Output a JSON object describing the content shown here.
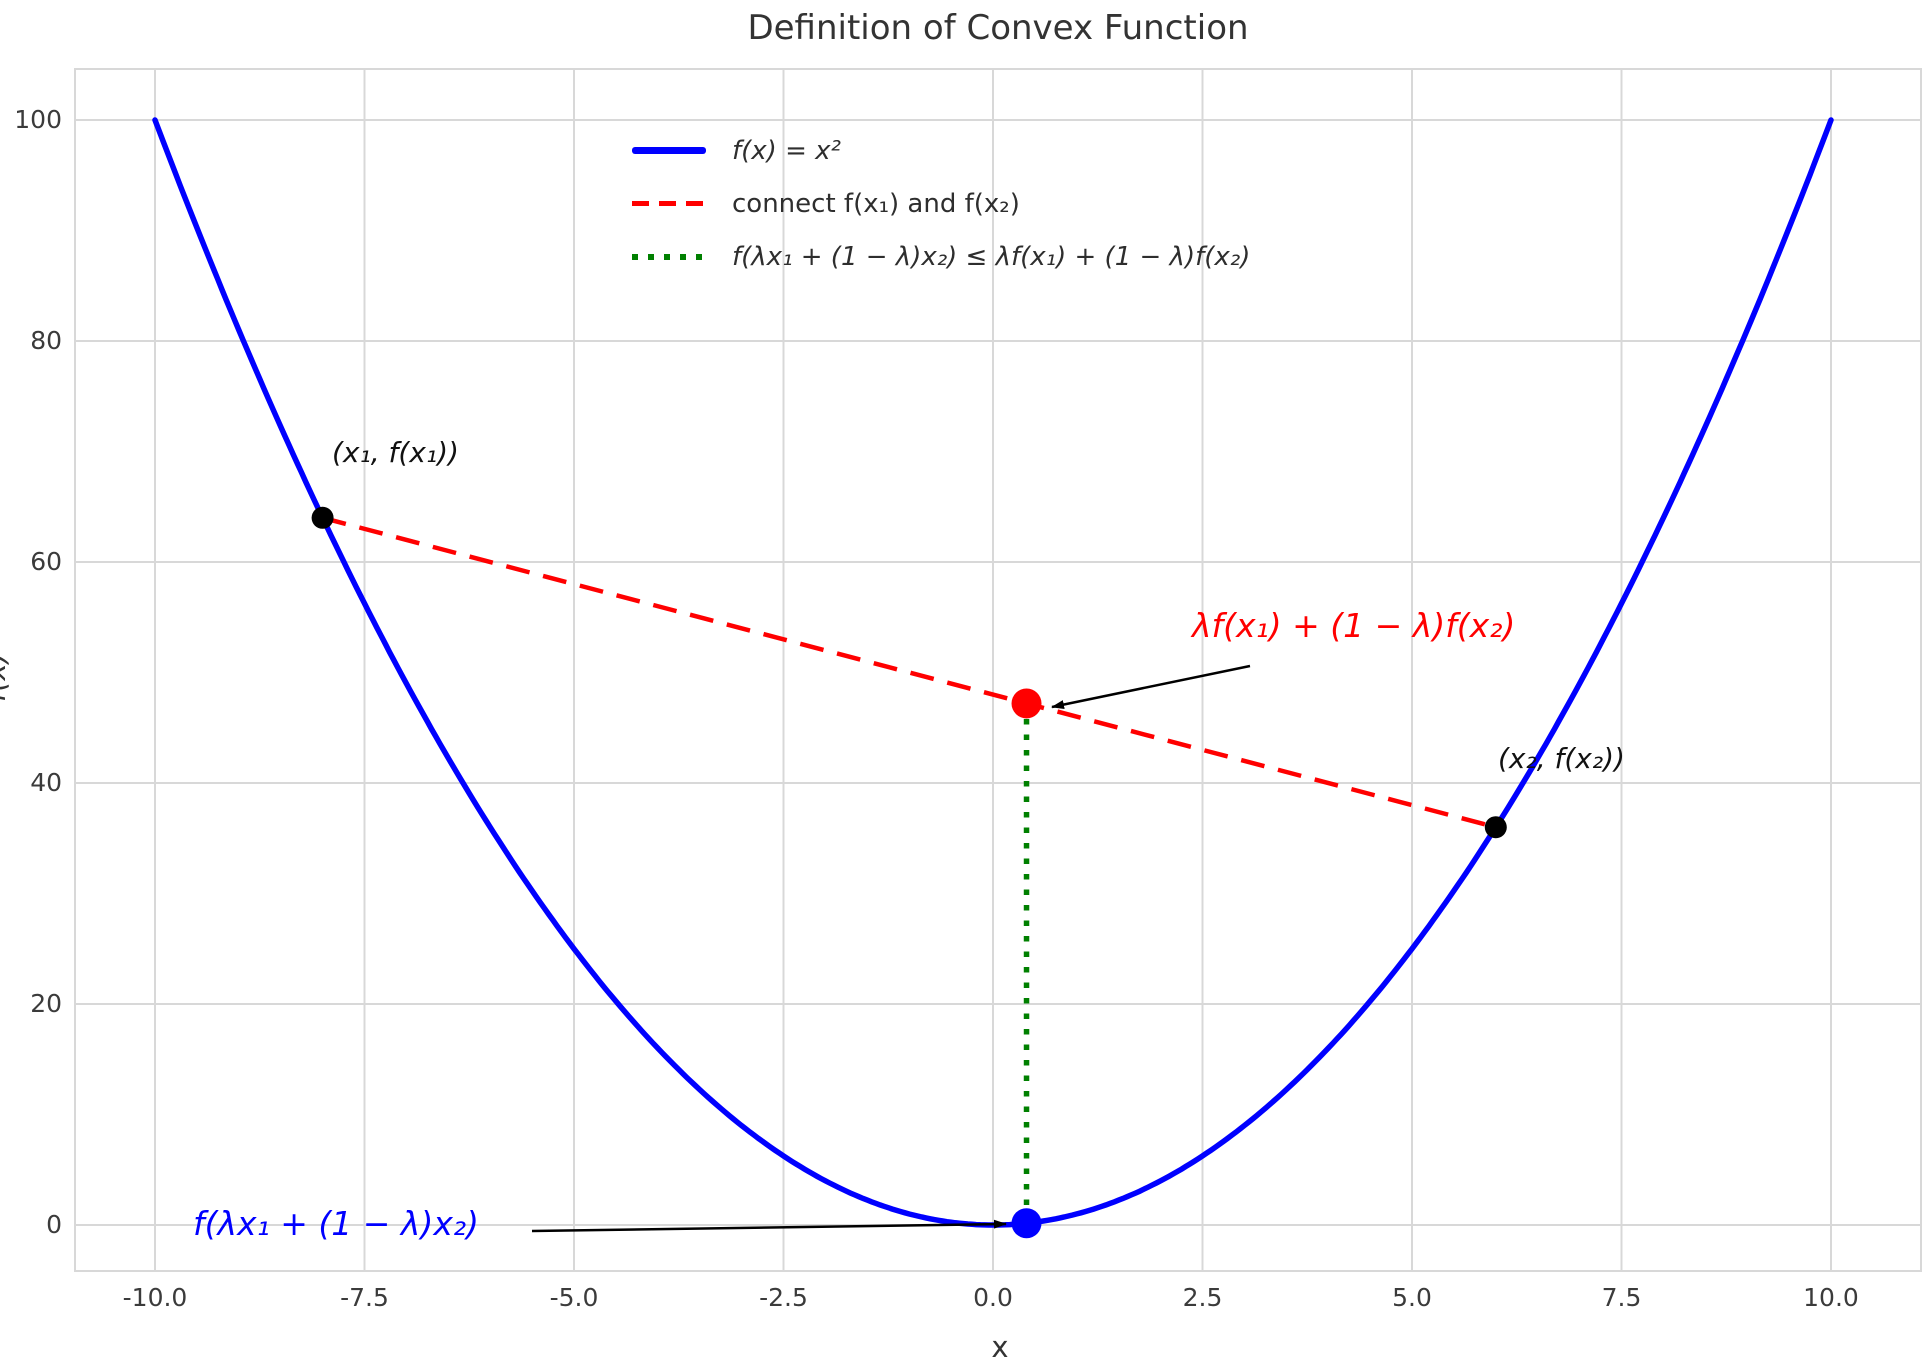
{
  "title": "Definition of Convex Function",
  "colors": {
    "curve": "#0000FF",
    "chord": "#FF0000",
    "gap_line": "#008000",
    "point_black": "#000000",
    "grid": "#D8D8D8",
    "text": "#333333",
    "tick_text": "#3B3B3B"
  },
  "axes": {
    "xlabel": "x",
    "ylabel": "f(x)",
    "xtick_labels": [
      "-10.0",
      "-7.5",
      "-5.0",
      "-2.5",
      "0.0",
      "2.5",
      "5.0",
      "7.5",
      "10.0"
    ],
    "ytick_labels": [
      "0",
      "20",
      "40",
      "60",
      "80",
      "100"
    ]
  },
  "legend": {
    "items": [
      {
        "swatch": "blue-solid-line",
        "label": "f(x) = x²"
      },
      {
        "swatch": "red-dashed-line",
        "label": "connect f(x₁) and f(x₂)"
      },
      {
        "swatch": "green-dotted-line",
        "label": "f(λx₁ + (1 − λ)x₂) ≤ λf(x₁) + (1 − λ)f(x₂)"
      }
    ]
  },
  "annotations": {
    "point1_label": "(x₁, f(x₁))",
    "point2_label": "(x₂, f(x₂))",
    "chord_value_label": "λf(x₁) + (1 − λ)f(x₂)",
    "curve_value_label": "f(λx₁ + (1 − λ)x₂)"
  },
  "chart_data": {
    "type": "line",
    "title": "Definition of Convex Function",
    "xlabel": "x",
    "ylabel": "f(x)",
    "xlim": [
      -11,
      11
    ],
    "ylim": [
      -4.8,
      104.8
    ],
    "xticks": [
      -10,
      -7.5,
      -5,
      -2.5,
      0,
      2.5,
      5,
      7.5,
      10
    ],
    "yticks": [
      0,
      20,
      40,
      60,
      80,
      100
    ],
    "grid": true,
    "legend_position": "upper center-left, no frame",
    "lambda": 0.4,
    "x1": -8,
    "x2": 6,
    "series": [
      {
        "name": "f(x) = x²",
        "kind": "function",
        "expr": "x^2",
        "domain": [
          -10,
          10
        ],
        "color": "#0000FF",
        "style": "solid"
      },
      {
        "name": "connect f(x₁) and f(x₂)",
        "kind": "segment",
        "points": [
          [
            -8,
            64
          ],
          [
            6,
            36
          ]
        ],
        "color": "#FF0000",
        "style": "dashed"
      },
      {
        "name": "f(λx₁ + (1 − λ)x₂) ≤ λf(x₁) + (1 − λ)f(x₂)",
        "kind": "segment",
        "points": [
          [
            0.4,
            47.2
          ],
          [
            0.4,
            0.16
          ]
        ],
        "color": "#008000",
        "style": "dotted"
      }
    ],
    "points": [
      {
        "label": "(x₁, f(x₁))",
        "x": -8,
        "y": 64,
        "color": "#000000",
        "size": "small"
      },
      {
        "label": "(x₂, f(x₂))",
        "x": 6,
        "y": 36,
        "color": "#000000",
        "size": "small"
      },
      {
        "label": "λf(x₁) + (1 − λ)f(x₂)",
        "x": 0.4,
        "y": 47.2,
        "color": "#FF0000",
        "size": "large"
      },
      {
        "label": "f(λx₁ + (1 − λ)x₂)",
        "x": 0.4,
        "y": 0.16,
        "color": "#0000FF",
        "size": "large"
      }
    ]
  }
}
